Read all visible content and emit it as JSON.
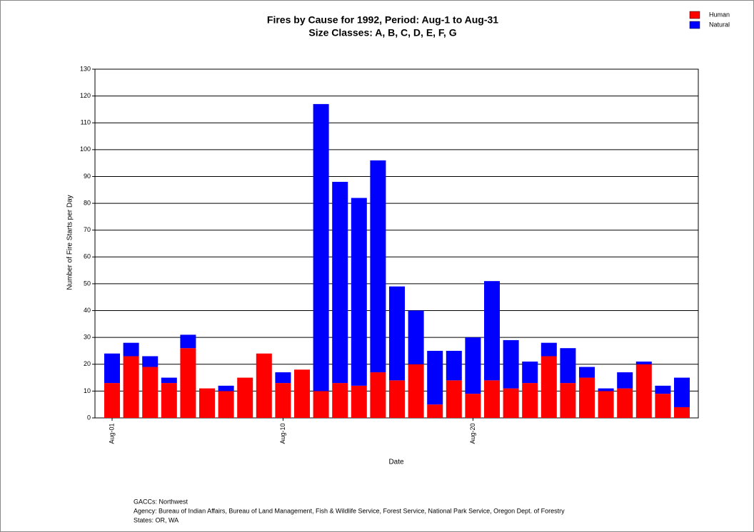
{
  "chart_data": {
    "type": "stacked-bar",
    "title": "Fires by Cause for 1992, Period: Aug-1 to Aug-31",
    "subtitle": "Size Classes: A, B, C, D, E, F, G",
    "y_label": "Number of Fire Starts per Day",
    "x_label": "Date",
    "categories": [
      "Aug-01",
      null,
      null,
      null,
      null,
      null,
      null,
      null,
      null,
      "Aug-10",
      null,
      null,
      null,
      null,
      null,
      null,
      null,
      null,
      null,
      "Aug-20",
      null,
      null,
      null,
      null,
      null,
      null,
      null,
      null,
      null,
      null,
      null
    ],
    "series": [
      {
        "name": "Human",
        "color": "#ff0000",
        "values": [
          13,
          23,
          19,
          13,
          26,
          11,
          10,
          15,
          24,
          13,
          18,
          10,
          13,
          12,
          17,
          14,
          20,
          5,
          14,
          9,
          14,
          11,
          13,
          23,
          13,
          15,
          10,
          11,
          20,
          9,
          4
        ]
      },
      {
        "name": "Natural",
        "color": "#0000ff",
        "values": [
          11,
          5,
          4,
          2,
          5,
          0,
          2,
          0,
          0,
          4,
          0,
          107,
          75,
          70,
          79,
          35,
          20,
          20,
          11,
          21,
          37,
          18,
          8,
          5,
          13,
          4,
          1,
          6,
          1,
          3,
          11
        ]
      }
    ],
    "ylim": [
      0,
      130
    ],
    "yticks": [
      0,
      10,
      20,
      30,
      40,
      50,
      60,
      70,
      80,
      90,
      100,
      110,
      120,
      130
    ],
    "grid": true,
    "legend": "top-right",
    "footer": [
      "GACCs: Northwest",
      "Agency: Bureau of Indian Affairs, Bureau of Land Management, Fish & Wildlife Service, Forest Service, National Park Service, Oregon Dept. of Forestry",
      "States: OR, WA"
    ]
  }
}
